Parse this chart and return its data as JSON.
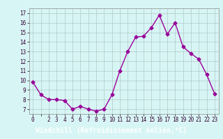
{
  "x": [
    0,
    1,
    2,
    3,
    4,
    5,
    6,
    7,
    8,
    9,
    10,
    11,
    12,
    13,
    14,
    15,
    16,
    17,
    18,
    19,
    20,
    21,
    22,
    23
  ],
  "y": [
    9.8,
    8.5,
    8.0,
    8.0,
    7.9,
    7.0,
    7.3,
    7.0,
    6.8,
    7.0,
    8.5,
    11.0,
    13.0,
    14.5,
    14.6,
    15.5,
    16.8,
    14.8,
    16.0,
    13.5,
    12.8,
    12.2,
    10.6,
    8.6
  ],
  "line_color": "#990099",
  "marker": "D",
  "marker_size": 2.5,
  "bg_color": "#d8f5f5",
  "grid_color": "#b0c8c8",
  "xlabel": "Windchill (Refroidissement éolien,°C)",
  "xlabel_bg": "#9900bb",
  "xlabel_color": "#ffffff",
  "ylim": [
    6.5,
    17.5
  ],
  "xlim": [
    -0.5,
    23.5
  ],
  "yticks": [
    7,
    8,
    9,
    10,
    11,
    12,
    13,
    14,
    15,
    16,
    17
  ],
  "xtick_labels": [
    "0",
    "",
    "2",
    "3",
    "4",
    "5",
    "6",
    "7",
    "8",
    "9",
    "10",
    "11",
    "12",
    "13",
    "14",
    "15",
    "16",
    "17",
    "18",
    "19",
    "20",
    "21",
    "22",
    "23"
  ],
  "tick_label_size": 5.5,
  "xlabel_fontsize": 7.0,
  "line_width": 1.0
}
